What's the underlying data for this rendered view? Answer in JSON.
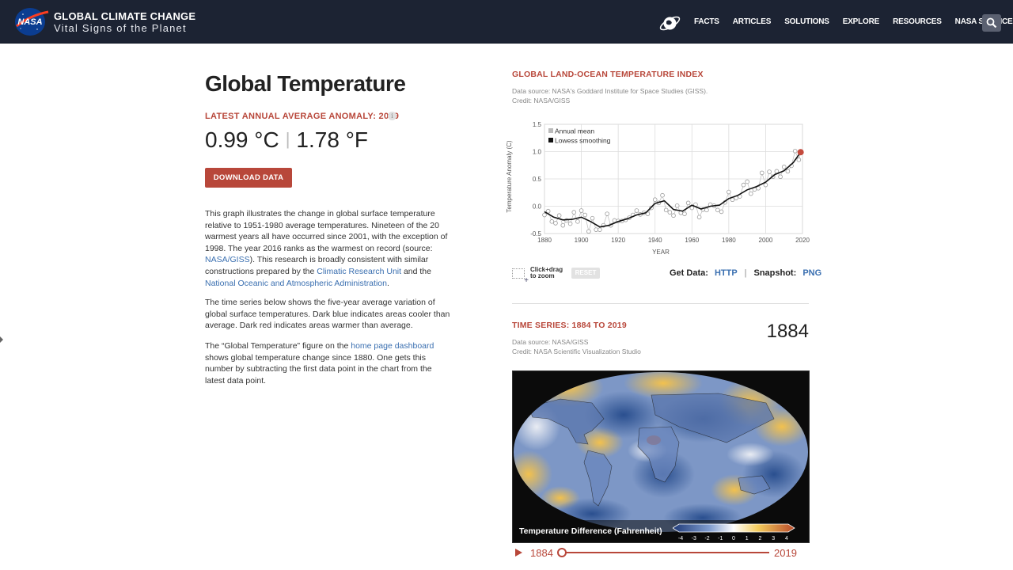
{
  "header": {
    "logo_text": "NASA",
    "brand_title": "GLOBAL CLIMATE CHANGE",
    "brand_subtitle": "Vital Signs of the Planet",
    "nav": [
      "FACTS",
      "ARTICLES",
      "SOLUTIONS",
      "EXPLORE",
      "RESOURCES",
      "NASA SCIENCE"
    ]
  },
  "main": {
    "title": "Global Temperature",
    "latest_label": "LATEST ANNUAL AVERAGE ANOMALY: 2019",
    "info_glyph": "i",
    "temp_c": "0.99 °C",
    "temp_sep": "|",
    "temp_f": "1.78 °F",
    "download_label": "DOWNLOAD DATA",
    "p1_a": "This graph illustrates the change in global surface temperature relative to 1951-1980 average temperatures. Nineteen of the 20 warmest years all have occurred since 2001, with the exception of 1998. The year 2016 ranks as the warmest on record (source: ",
    "p1_link1": "NASA/GISS",
    "p1_b": "). This research is broadly consistent with similar constructions prepared by the ",
    "p1_link2": "Climatic Research Unit",
    "p1_c": " and the ",
    "p1_link3": "National Oceanic and Atmospheric Administration",
    "p1_d": ".",
    "p2": "The time series below shows the five-year average variation of global surface temperatures. Dark blue indicates areas cooler than average. Dark red indicates areas warmer than average.",
    "p3_a": "The “Global Temperature” figure on the ",
    "p3_link": "home page dashboard",
    "p3_b": " shows global temperature change since 1880. One gets this number by subtracting the first data point in the chart from the latest data point."
  },
  "chart_panel": {
    "heading": "GLOBAL LAND-OCEAN TEMPERATURE INDEX",
    "source_line1": "Data source: NASA's Goddard Institute for Space Studies (GISS).",
    "source_line2": "Credit: NASA/GISS",
    "zoom_hint": "Click+drag to zoom",
    "reset_label": "RESET",
    "get_data_label": "Get Data:",
    "http_link": "HTTP",
    "sep": "|",
    "snapshot_label": "Snapshot:",
    "png_link": "PNG"
  },
  "chart_data": {
    "type": "line",
    "ylabel": "Temperature Anomaly (C)",
    "xlabel": "YEAR",
    "xlim": [
      1880,
      2020
    ],
    "ylim": [
      -0.5,
      1.5
    ],
    "xticks": [
      1880,
      1900,
      1920,
      1940,
      1960,
      1980,
      2000,
      2020
    ],
    "yticks": [
      "-0.5",
      "0.0",
      "0.5",
      "1.0",
      "1.5"
    ],
    "grid": true,
    "legend": {
      "position": "top-left",
      "entries": [
        "Annual mean",
        "Lowess smoothing"
      ]
    },
    "series": [
      {
        "name": "Annual mean",
        "style": "open-circles",
        "x": [
          1880,
          1882,
          1884,
          1886,
          1888,
          1890,
          1892,
          1894,
          1896,
          1898,
          1900,
          1902,
          1904,
          1906,
          1908,
          1910,
          1912,
          1914,
          1916,
          1918,
          1920,
          1922,
          1924,
          1926,
          1928,
          1930,
          1932,
          1934,
          1936,
          1938,
          1940,
          1942,
          1944,
          1946,
          1948,
          1950,
          1952,
          1954,
          1956,
          1958,
          1960,
          1962,
          1964,
          1966,
          1968,
          1970,
          1972,
          1974,
          1976,
          1978,
          1980,
          1982,
          1984,
          1986,
          1988,
          1990,
          1992,
          1994,
          1996,
          1998,
          2000,
          2002,
          2004,
          2006,
          2008,
          2010,
          2012,
          2014,
          2016,
          2018,
          2019
        ],
        "values": [
          -0.16,
          -0.09,
          -0.28,
          -0.31,
          -0.17,
          -0.35,
          -0.26,
          -0.32,
          -0.11,
          -0.28,
          -0.08,
          -0.16,
          -0.46,
          -0.22,
          -0.43,
          -0.43,
          -0.35,
          -0.14,
          -0.35,
          -0.26,
          -0.27,
          -0.27,
          -0.25,
          -0.21,
          -0.16,
          -0.08,
          -0.15,
          -0.12,
          -0.14,
          -0.03,
          0.12,
          0.06,
          0.2,
          -0.07,
          -0.11,
          -0.17,
          0.01,
          -0.12,
          -0.14,
          0.06,
          -0.03,
          0.03,
          -0.2,
          -0.06,
          -0.07,
          0.03,
          0.01,
          -0.07,
          -0.1,
          0.07,
          0.26,
          0.12,
          0.15,
          0.18,
          0.39,
          0.45,
          0.23,
          0.31,
          0.33,
          0.61,
          0.39,
          0.63,
          0.54,
          0.64,
          0.54,
          0.72,
          0.64,
          0.74,
          1.01,
          0.85,
          0.99
        ]
      },
      {
        "name": "Lowess smoothing",
        "style": "line",
        "x": [
          1880,
          1885,
          1890,
          1895,
          1900,
          1905,
          1910,
          1915,
          1920,
          1925,
          1930,
          1935,
          1940,
          1945,
          1950,
          1955,
          1960,
          1965,
          1970,
          1975,
          1980,
          1985,
          1990,
          1995,
          2000,
          2005,
          2010,
          2015,
          2019
        ],
        "values": [
          -0.1,
          -0.2,
          -0.25,
          -0.24,
          -0.2,
          -0.28,
          -0.38,
          -0.35,
          -0.28,
          -0.23,
          -0.16,
          -0.12,
          0.05,
          0.1,
          -0.06,
          -0.09,
          0.02,
          -0.05,
          0.0,
          0.02,
          0.14,
          0.2,
          0.3,
          0.36,
          0.44,
          0.58,
          0.65,
          0.8,
          0.99
        ]
      }
    ]
  },
  "time_series": {
    "heading": "TIME SERIES: 1884 TO 2019",
    "current_year": "1884",
    "source_line1": "Data source: NASA/GISS",
    "source_line2": "Credit: NASA Scientific Visualization Studio",
    "legend_title": "Temperature Difference (Fahrenheit)",
    "legend_ticks": [
      "-4",
      "-3",
      "-2",
      "-1",
      "0",
      "1",
      "2",
      "3",
      "4"
    ],
    "slider_start": "1884",
    "slider_end": "2019",
    "slider_progress": 0
  },
  "colors": {
    "header_bg": "#1c2333",
    "accent_red": "#b8473a",
    "link_blue": "#3a6fb0"
  }
}
